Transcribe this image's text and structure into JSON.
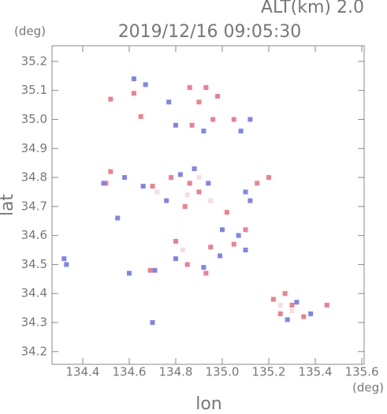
{
  "chart_data": {
    "type": "scatter",
    "title": "2019/12/16 09:05:30",
    "subtitle": "ALT(km) 2.0",
    "x_label": "lon",
    "y_label": "lat",
    "x_unit": "(deg)",
    "y_unit": "(deg)",
    "xlim": [
      134.268,
      135.61
    ],
    "ylim": [
      34.156,
      35.254
    ],
    "xticks": [
      134.4,
      134.6,
      134.8,
      {
        "value": 135,
        "label": "135.0"
      },
      135.2,
      135.4,
      135.6
    ],
    "yticks": [
      34.2,
      34.3,
      34.4,
      34.5,
      34.6,
      34.7,
      34.8,
      34.9,
      {
        "value": 35,
        "label": "35.0"
      },
      35.1,
      35.2
    ],
    "series": [
      {
        "color": "#f4dde3",
        "x": [
          134.85,
          134.9,
          134.83,
          135.3,
          135.25,
          134.95,
          134.72
        ],
        "y": [
          34.74,
          34.8,
          34.55,
          34.34,
          34.36,
          34.72,
          34.75
        ]
      },
      {
        "color": "#ef7f8e",
        "x": [
          134.52,
          134.65,
          134.62,
          134.86,
          134.93,
          134.9,
          134.98,
          134.87,
          134.96,
          135.05,
          134.52,
          134.5,
          134.7,
          134.78,
          134.86,
          134.9,
          134.84,
          135.15,
          135.2,
          135.02,
          134.85,
          134.95,
          134.8,
          134.93,
          135.1,
          135.05,
          134.69,
          135.25,
          135.3,
          135.22,
          135.35,
          135.45,
          135.27
        ],
        "y": [
          35.07,
          35.01,
          35.09,
          35.11,
          35.11,
          35.06,
          35.08,
          34.98,
          35.0,
          35.0,
          34.82,
          34.78,
          34.77,
          34.8,
          34.78,
          34.75,
          34.7,
          34.78,
          34.8,
          34.68,
          34.5,
          34.56,
          34.58,
          34.47,
          34.62,
          34.57,
          34.48,
          34.33,
          34.36,
          34.38,
          34.32,
          34.36,
          34.4
        ]
      },
      {
        "color": "#7f84ee",
        "x": [
          134.62,
          134.67,
          134.77,
          134.8,
          134.92,
          135.08,
          135.12,
          134.49,
          134.58,
          134.66,
          134.76,
          134.82,
          134.88,
          134.94,
          135.1,
          135.12,
          135.0,
          135.07,
          134.92,
          134.99,
          134.8,
          134.33,
          134.32,
          134.55,
          134.7,
          135.1,
          135.38,
          135.32,
          135.28,
          134.71,
          134.6
        ],
        "y": [
          35.14,
          35.12,
          35.06,
          34.98,
          34.96,
          34.96,
          35.0,
          34.78,
          34.8,
          34.77,
          34.72,
          34.81,
          34.83,
          34.78,
          34.75,
          34.72,
          34.62,
          34.6,
          34.49,
          34.53,
          34.52,
          34.5,
          34.52,
          34.66,
          34.3,
          34.55,
          34.33,
          34.37,
          34.31,
          34.48,
          34.47
        ]
      }
    ]
  }
}
